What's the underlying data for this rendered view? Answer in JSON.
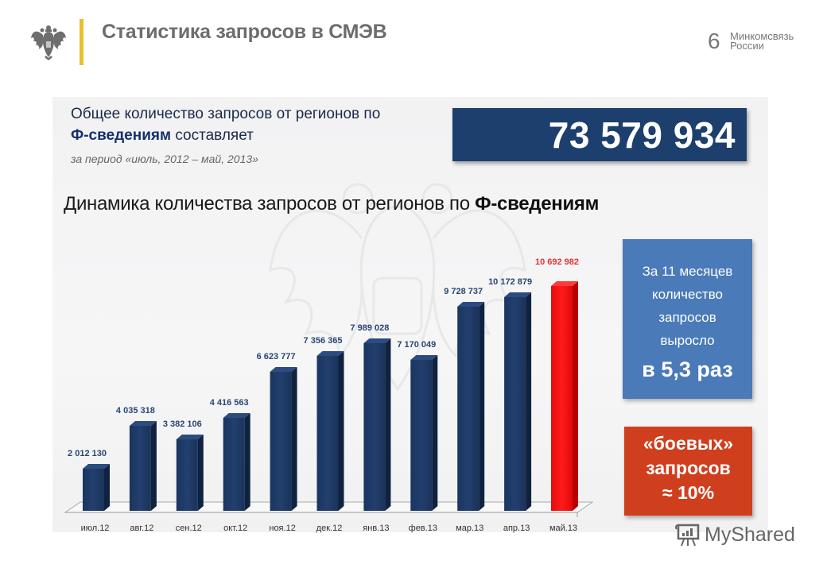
{
  "header": {
    "title": "Статистика запросов в СМЭВ",
    "page_number": "6",
    "ministry_line1": "Минкомсвязь",
    "ministry_line2": "России",
    "accent_color": "#e9c02a"
  },
  "summary": {
    "line1": "Общее количество запросов от регионов по",
    "line2_bold": "Ф-сведениям",
    "line2_rest": " составляет",
    "period": "за период «июль, 2012 – май, 2013»",
    "total": "73 579 934"
  },
  "chart_title": {
    "regular": "Динамика количества запросов от регионов по ",
    "bold": "Ф-сведениям"
  },
  "growth_box": {
    "line1": "За 11 месяцев",
    "line2": "количество",
    "line3": "запросов",
    "line4": "выросло",
    "big": "в 5,3 раз",
    "color": "#4a7ab8"
  },
  "combat_box": {
    "line1": "«боевых»",
    "line2": "запросов",
    "line3": "≈ 10%",
    "color": "#cf3f1e"
  },
  "watermark": {
    "brand": "MyShared"
  },
  "chart_data": {
    "type": "bar",
    "title": "Динамика количества запросов от регионов по Ф-сведениям",
    "xlabel": "",
    "ylabel": "",
    "categories": [
      "июл.12",
      "авг.12",
      "сен.12",
      "окт.12",
      "ноя.12",
      "дек.12",
      "янв.13",
      "фев.13",
      "мар.13",
      "апр.13",
      "май.13"
    ],
    "values": [
      2012130,
      4035318,
      3382106,
      4416563,
      6623777,
      7356365,
      7989028,
      7170049,
      9728737,
      10172879,
      10692982
    ],
    "value_labels": [
      "2 012 130",
      "4 035 318",
      "3 382 106",
      "4 416 563",
      "6 623 777",
      "7 356 365",
      "7 989 028",
      "7 170 049",
      "9 728 737",
      "10 172 879",
      "10 692 982"
    ],
    "bar_colors": [
      "#1d3860",
      "#1d3860",
      "#1d3860",
      "#1d3860",
      "#1d3860",
      "#1d3860",
      "#1d3860",
      "#1d3860",
      "#1d3860",
      "#1d3860",
      "#f01010"
    ],
    "grid": false,
    "style": "3d-column",
    "highlight": "май.13"
  }
}
